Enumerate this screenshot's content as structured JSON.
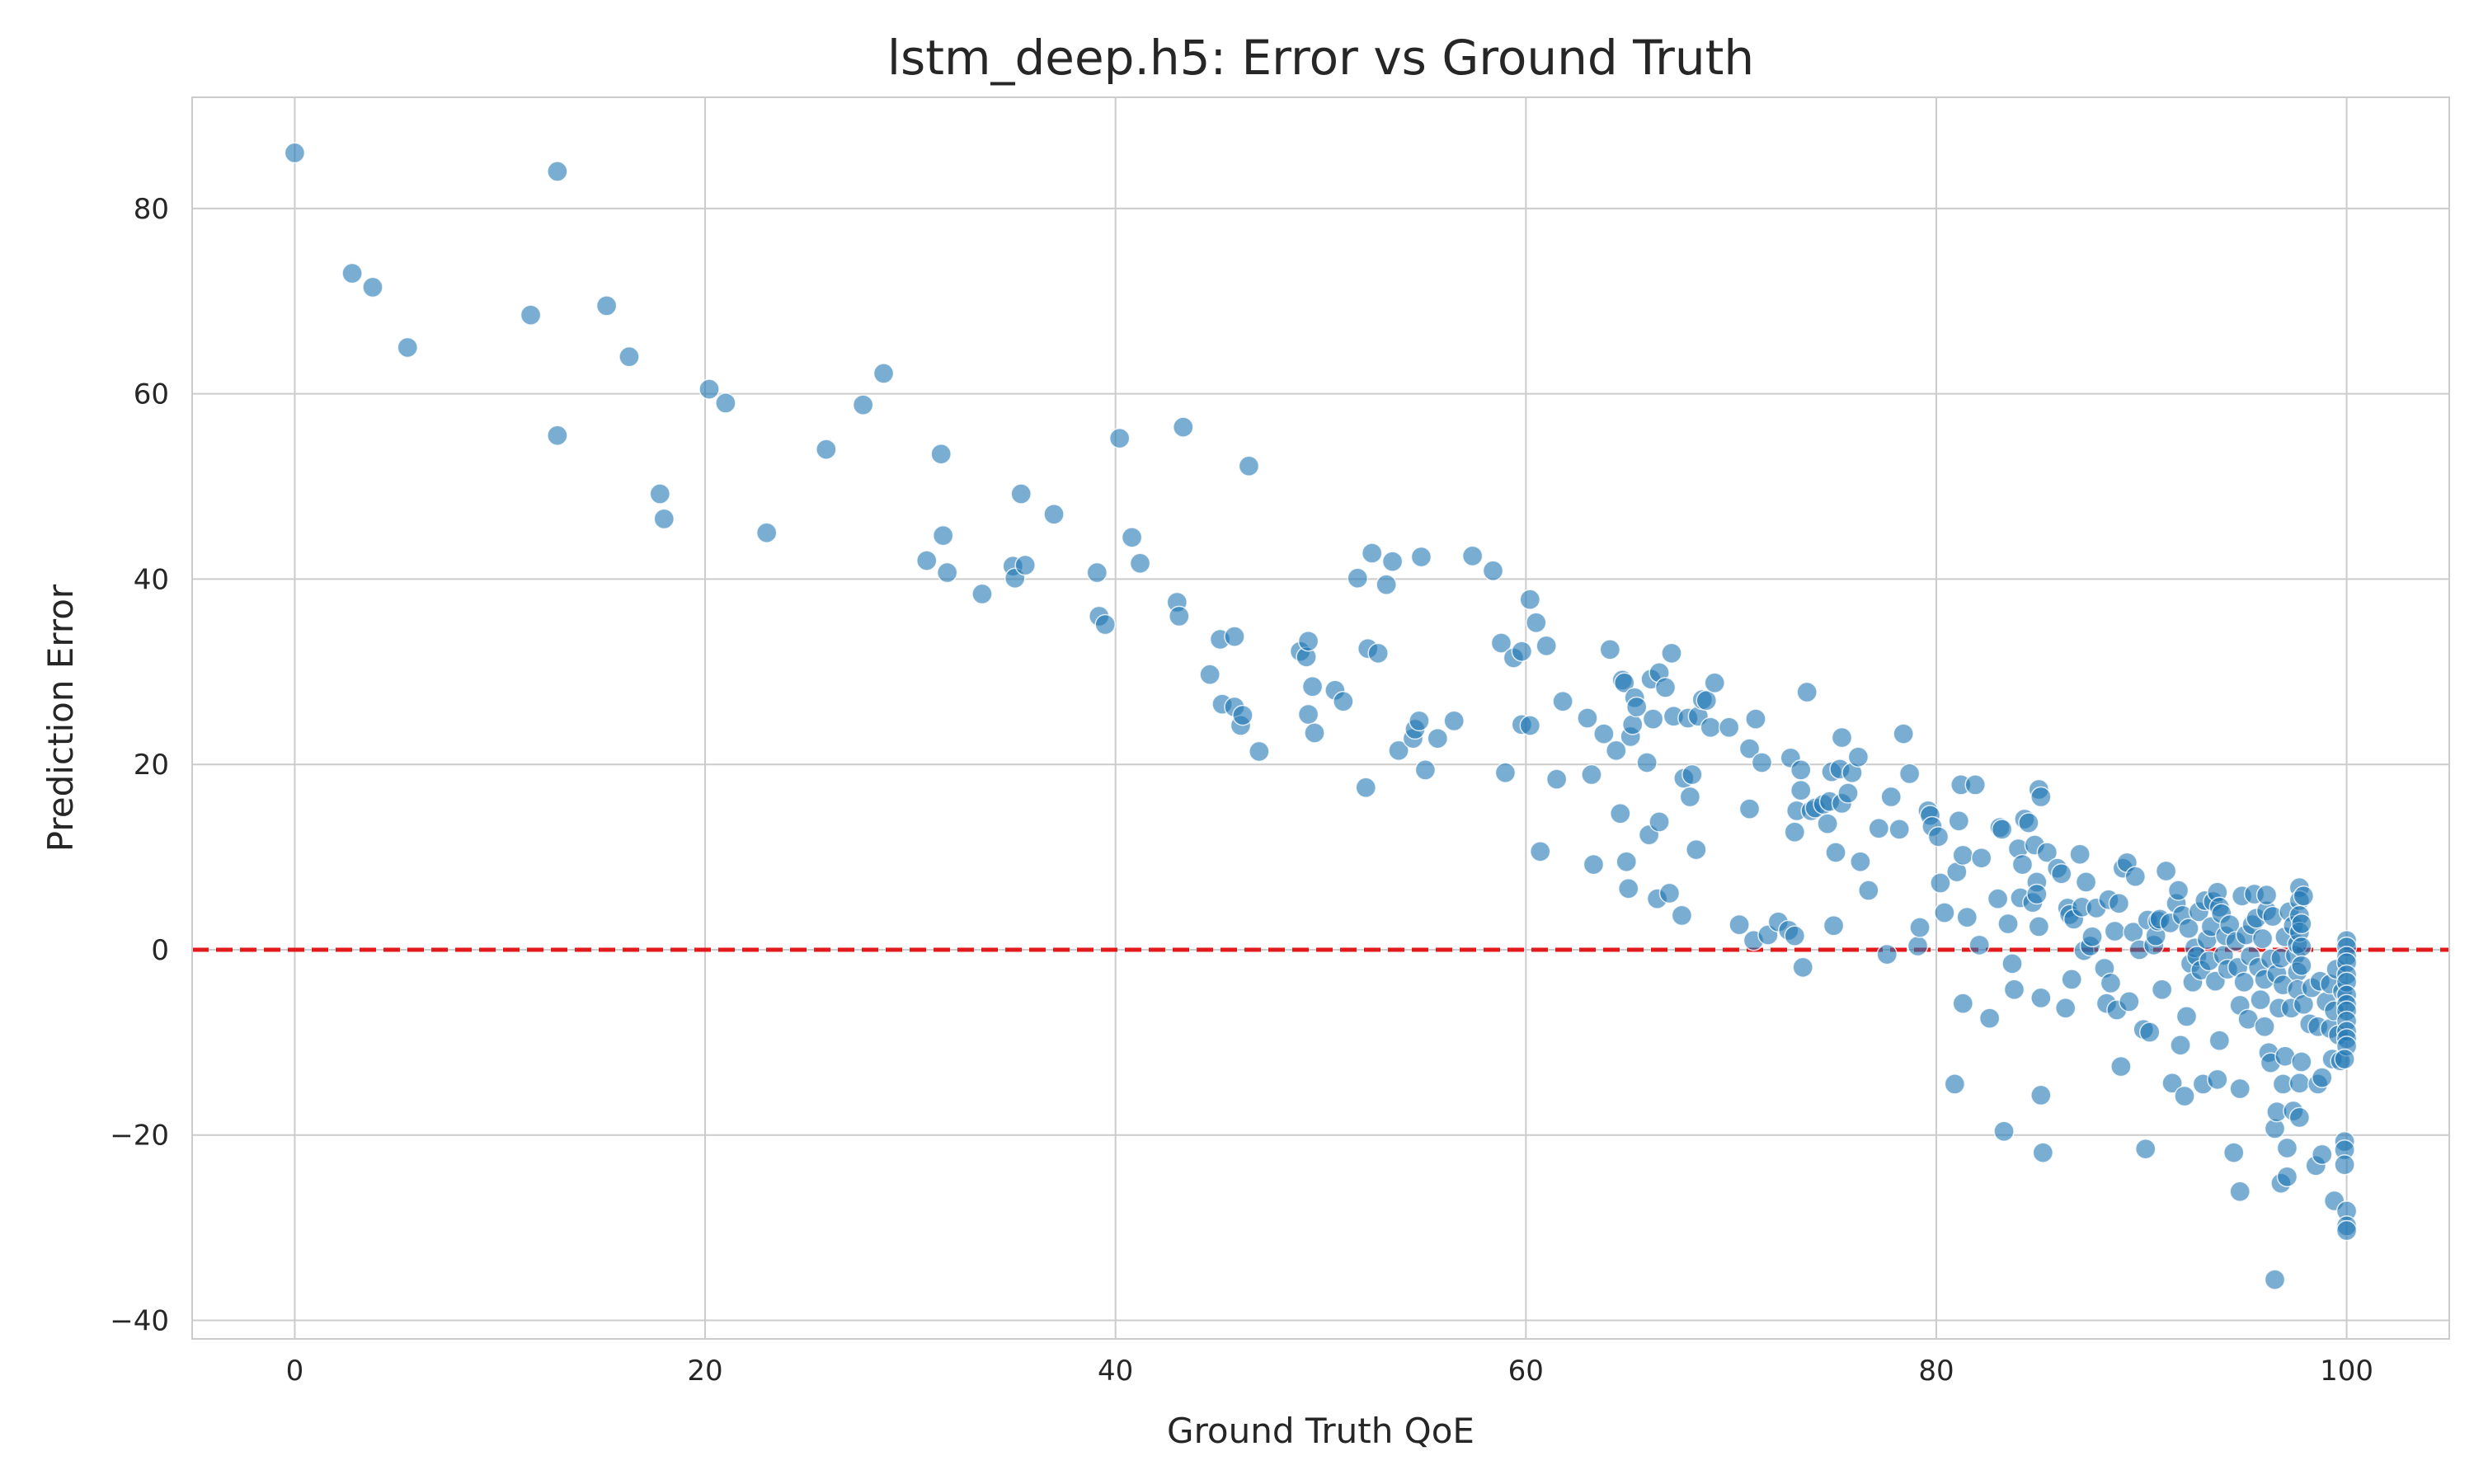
{
  "chart_data": {
    "type": "scatter",
    "title": "lstm_deep.h5: Error vs Ground Truth",
    "xlabel": "Ground Truth QoE",
    "ylabel": "Prediction Error",
    "xlim": [
      -5,
      105
    ],
    "ylim": [
      -42,
      92
    ],
    "xticks": [
      0,
      20,
      40,
      60,
      80,
      100
    ],
    "yticks": [
      -40,
      -20,
      0,
      20,
      40,
      60,
      80
    ],
    "grid": true,
    "reference_line": {
      "y": 0,
      "style": "dashed",
      "color": "#e31a1c"
    },
    "point_color": "#1f77b4",
    "points": [
      [
        0,
        86
      ],
      [
        2.8,
        73
      ],
      [
        3.8,
        71.5
      ],
      [
        5.5,
        65
      ],
      [
        11.5,
        68.5
      ],
      [
        12.8,
        84
      ],
      [
        12.8,
        55.5
      ],
      [
        15.2,
        69.5
      ],
      [
        16.3,
        64
      ],
      [
        17.8,
        49.2
      ],
      [
        18,
        46.5
      ],
      [
        20.2,
        60.5
      ],
      [
        21,
        59
      ],
      [
        23,
        45
      ],
      [
        25.9,
        54
      ],
      [
        27.7,
        58.8
      ],
      [
        28.7,
        62.2
      ],
      [
        30.8,
        42
      ],
      [
        31.5,
        53.5
      ],
      [
        31.6,
        44.7
      ],
      [
        31.8,
        40.7
      ],
      [
        33.5,
        38.4
      ],
      [
        35,
        41.4
      ],
      [
        35.1,
        40.1
      ],
      [
        35.4,
        49.2
      ],
      [
        35.6,
        41.5
      ],
      [
        37,
        47
      ],
      [
        39.1,
        40.7
      ],
      [
        39.2,
        36
      ],
      [
        39.5,
        35.1
      ],
      [
        40.2,
        55.2
      ],
      [
        40.8,
        44.5
      ],
      [
        41.2,
        41.7
      ],
      [
        43,
        37.5
      ],
      [
        43.1,
        36
      ],
      [
        43.3,
        56.4
      ],
      [
        44.6,
        29.7
      ],
      [
        45.1,
        33.5
      ],
      [
        45.2,
        26.5
      ],
      [
        45.8,
        33.8
      ],
      [
        45.8,
        26.2
      ],
      [
        46.1,
        24.2
      ],
      [
        46.2,
        25.3
      ],
      [
        46.5,
        52.2
      ],
      [
        47,
        21.4
      ],
      [
        49,
        32.2
      ],
      [
        49.3,
        31.6
      ],
      [
        49.4,
        33.3
      ],
      [
        49.4,
        25.4
      ],
      [
        49.6,
        28.4
      ],
      [
        49.7,
        23.4
      ],
      [
        50.7,
        28
      ],
      [
        51.1,
        26.8
      ],
      [
        51.8,
        40.1
      ],
      [
        52.2,
        17.5
      ],
      [
        52.3,
        32.5
      ],
      [
        52.5,
        42.8
      ],
      [
        52.8,
        32
      ],
      [
        53.2,
        39.4
      ],
      [
        53.5,
        41.9
      ],
      [
        53.8,
        21.5
      ],
      [
        54.5,
        22.8
      ],
      [
        54.6,
        23.8
      ],
      [
        54.8,
        24.7
      ],
      [
        54.9,
        42.4
      ],
      [
        55.1,
        19.4
      ],
      [
        55.7,
        22.8
      ],
      [
        56.5,
        24.7
      ],
      [
        57.4,
        42.5
      ],
      [
        58.4,
        40.9
      ],
      [
        58.8,
        33.1
      ],
      [
        59,
        19.1
      ],
      [
        59.4,
        31.5
      ],
      [
        59.8,
        32.2
      ],
      [
        59.8,
        24.3
      ],
      [
        60.2,
        37.8
      ],
      [
        60.2,
        24.2
      ],
      [
        60.5,
        35.3
      ],
      [
        60.7,
        10.6
      ],
      [
        61,
        32.8
      ],
      [
        61.5,
        18.4
      ],
      [
        61.8,
        26.8
      ],
      [
        63,
        25
      ],
      [
        63.2,
        18.9
      ],
      [
        63.3,
        9.2
      ],
      [
        63.8,
        23.3
      ],
      [
        64.1,
        32.4
      ],
      [
        64.4,
        21.5
      ],
      [
        64.6,
        14.7
      ],
      [
        64.7,
        29.1
      ],
      [
        64.8,
        28.8
      ],
      [
        64.9,
        9.5
      ],
      [
        65,
        6.6
      ],
      [
        65.1,
        23
      ],
      [
        65.2,
        24.3
      ],
      [
        65.3,
        27.2
      ],
      [
        65.4,
        26.2
      ],
      [
        65.9,
        20.2
      ],
      [
        66,
        12.4
      ],
      [
        66.1,
        29.2
      ],
      [
        66.2,
        24.9
      ],
      [
        66.4,
        5.5
      ],
      [
        66.5,
        29.9
      ],
      [
        66.5,
        13.8
      ],
      [
        66.8,
        28.3
      ],
      [
        67,
        6.1
      ],
      [
        67.1,
        32
      ],
      [
        67.2,
        25.2
      ],
      [
        67.6,
        3.7
      ],
      [
        67.7,
        18.5
      ],
      [
        67.9,
        25
      ],
      [
        68,
        16.5
      ],
      [
        68.1,
        18.9
      ],
      [
        68.3,
        10.8
      ],
      [
        68.4,
        25.2
      ],
      [
        68.6,
        27
      ],
      [
        68.8,
        26.9
      ],
      [
        69,
        24
      ],
      [
        69.2,
        28.8
      ],
      [
        69.9,
        24
      ],
      [
        70.4,
        2.7
      ],
      [
        70.9,
        21.7
      ],
      [
        70.9,
        15.2
      ],
      [
        71.1,
        1
      ],
      [
        71.2,
        24.9
      ],
      [
        71.5,
        20.2
      ],
      [
        71.8,
        1.6
      ],
      [
        72.3,
        3
      ],
      [
        72.8,
        2.1
      ],
      [
        72.9,
        20.7
      ],
      [
        73.1,
        1.5
      ],
      [
        73.1,
        12.7
      ],
      [
        73.2,
        15
      ],
      [
        73.4,
        19.4
      ],
      [
        73.4,
        17.2
      ],
      [
        73.5,
        -1.9
      ],
      [
        73.7,
        27.8
      ],
      [
        73.9,
        15
      ],
      [
        74.1,
        15.3
      ],
      [
        74.5,
        15.7
      ],
      [
        74.7,
        13.6
      ],
      [
        74.8,
        16
      ],
      [
        74.9,
        19.2
      ],
      [
        75,
        2.6
      ],
      [
        75.1,
        10.5
      ],
      [
        75.3,
        19.5
      ],
      [
        75.4,
        15.8
      ],
      [
        75.4,
        22.9
      ],
      [
        75.7,
        16.9
      ],
      [
        75.9,
        19.1
      ],
      [
        76.2,
        20.8
      ],
      [
        76.3,
        9.5
      ],
      [
        76.7,
        6.4
      ],
      [
        77.2,
        13.1
      ],
      [
        77.6,
        -0.5
      ],
      [
        77.8,
        16.5
      ],
      [
        78.2,
        13
      ],
      [
        78.4,
        23.3
      ],
      [
        78.7,
        19
      ],
      [
        79.1,
        0.4
      ],
      [
        79.2,
        2.4
      ],
      [
        79.6,
        15
      ],
      [
        79.7,
        14.5
      ],
      [
        79.8,
        13.3
      ],
      [
        80.1,
        12.2
      ],
      [
        80.2,
        7.2
      ],
      [
        80.4,
        4
      ],
      [
        80.9,
        -14.5
      ],
      [
        81,
        8.4
      ],
      [
        81.1,
        13.9
      ],
      [
        81.2,
        17.8
      ],
      [
        81.3,
        -5.8
      ],
      [
        81.3,
        10.2
      ],
      [
        81.5,
        3.5
      ],
      [
        81.9,
        17.8
      ],
      [
        82.1,
        0.5
      ],
      [
        82.2,
        9.9
      ],
      [
        82.6,
        -7.4
      ],
      [
        83,
        5.5
      ],
      [
        83.1,
        13.2
      ],
      [
        83.2,
        13
      ],
      [
        83.3,
        -19.6
      ],
      [
        83.5,
        2.8
      ],
      [
        83.7,
        -1.5
      ],
      [
        83.8,
        -4.3
      ],
      [
        84,
        10.9
      ],
      [
        84.1,
        5.6
      ],
      [
        84.2,
        9.2
      ],
      [
        84.3,
        14.1
      ],
      [
        84.5,
        13.7
      ],
      [
        84.7,
        5.1
      ],
      [
        84.8,
        11.3
      ],
      [
        84.9,
        7.3
      ],
      [
        84.9,
        6
      ],
      [
        85,
        17.3
      ],
      [
        85,
        2.5
      ],
      [
        85.1,
        16.5
      ],
      [
        85.1,
        -5.2
      ],
      [
        85.1,
        -15.7
      ],
      [
        85.2,
        -21.9
      ],
      [
        85.4,
        10.5
      ],
      [
        85.9,
        8.8
      ],
      [
        86.1,
        8.2
      ],
      [
        86.3,
        -6.3
      ],
      [
        86.4,
        4.5
      ],
      [
        86.5,
        3.8
      ],
      [
        86.6,
        -3.2
      ],
      [
        86.7,
        3.3
      ],
      [
        87,
        10.3
      ],
      [
        87.1,
        4.6
      ],
      [
        87.2,
        -0.1
      ],
      [
        87.3,
        7.3
      ],
      [
        87.5,
        0.4
      ],
      [
        87.6,
        1.4
      ],
      [
        87.8,
        4.5
      ],
      [
        88.2,
        -2
      ],
      [
        88.3,
        -5.8
      ],
      [
        88.4,
        5.4
      ],
      [
        88.5,
        -3.6
      ],
      [
        88.7,
        2
      ],
      [
        88.8,
        -6.5
      ],
      [
        88.9,
        5
      ],
      [
        89,
        -12.6
      ],
      [
        89.1,
        8.8
      ],
      [
        89.3,
        9.4
      ],
      [
        89.4,
        -5.6
      ],
      [
        89.6,
        1.9
      ],
      [
        89.7,
        7.9
      ],
      [
        89.9,
        0
      ],
      [
        90.1,
        -8.6
      ],
      [
        90.2,
        -21.5
      ],
      [
        90.3,
        3.2
      ],
      [
        90.4,
        -8.9
      ],
      [
        90.6,
        0.5
      ],
      [
        90.7,
        1.5
      ],
      [
        90.8,
        3.1
      ],
      [
        90.9,
        3.3
      ],
      [
        91,
        -4.3
      ],
      [
        91.2,
        8.5
      ],
      [
        91.4,
        2.9
      ],
      [
        91.5,
        -14.4
      ],
      [
        91.7,
        5
      ],
      [
        91.8,
        6.4
      ],
      [
        91.9,
        -10.3
      ],
      [
        92,
        3.7
      ],
      [
        92.1,
        -15.8
      ],
      [
        92.2,
        -7.2
      ],
      [
        92.3,
        2.3
      ],
      [
        92.4,
        -1.5
      ],
      [
        92.5,
        -3.5
      ],
      [
        92.6,
        0.2
      ],
      [
        92.7,
        -0.7
      ],
      [
        92.8,
        4.1
      ],
      [
        92.9,
        -2.2
      ],
      [
        93,
        -14.5
      ],
      [
        93.1,
        5.3
      ],
      [
        93.2,
        1.1
      ],
      [
        93.3,
        -1.2
      ],
      [
        93.4,
        2.5
      ],
      [
        93.5,
        5.2
      ],
      [
        93.6,
        -3.4
      ],
      [
        93.7,
        -14
      ],
      [
        93.7,
        6.2
      ],
      [
        93.8,
        4.6
      ],
      [
        93.8,
        -9.8
      ],
      [
        93.9,
        3.9
      ],
      [
        94,
        -0.6
      ],
      [
        94.1,
        1.5
      ],
      [
        94.2,
        -2.1
      ],
      [
        94.3,
        2.7
      ],
      [
        94.5,
        -21.9
      ],
      [
        94.6,
        0.9
      ],
      [
        94.7,
        -1.9
      ],
      [
        94.8,
        -6
      ],
      [
        94.8,
        -15
      ],
      [
        94.8,
        -26.1
      ],
      [
        94.9,
        5.8
      ],
      [
        95,
        -3.5
      ],
      [
        95.1,
        1.6
      ],
      [
        95.2,
        -7.5
      ],
      [
        95.3,
        -0.7
      ],
      [
        95.4,
        2.7
      ],
      [
        95.5,
        6
      ],
      [
        95.6,
        3.4
      ],
      [
        95.7,
        -1.9
      ],
      [
        95.8,
        -5.4
      ],
      [
        95.9,
        1.2
      ],
      [
        96,
        -8.3
      ],
      [
        96,
        -3.2
      ],
      [
        96.1,
        4.2
      ],
      [
        96.1,
        5.9
      ],
      [
        96.2,
        -11.1
      ],
      [
        96.3,
        -12.2
      ],
      [
        96.3,
        -1
      ],
      [
        96.4,
        3.6
      ],
      [
        96.5,
        -35.6
      ],
      [
        96.5,
        -19.3
      ],
      [
        96.6,
        -2.6
      ],
      [
        96.6,
        -17.5
      ],
      [
        96.7,
        -6.3
      ],
      [
        96.8,
        -25.2
      ],
      [
        96.8,
        -0.9
      ],
      [
        96.9,
        -3.8
      ],
      [
        96.9,
        -14.5
      ],
      [
        97,
        1.4
      ],
      [
        97,
        -11.5
      ],
      [
        97.1,
        -21.4
      ],
      [
        97.1,
        -24.5
      ],
      [
        97.2,
        4.1
      ],
      [
        97.3,
        -6.3
      ],
      [
        97.4,
        -17.4
      ],
      [
        97.4,
        2.6
      ],
      [
        97.5,
        -0.6
      ],
      [
        97.6,
        0.6
      ],
      [
        97.6,
        -2.4
      ],
      [
        97.6,
        -4.3
      ],
      [
        97.7,
        6.7
      ],
      [
        97.7,
        5.3
      ],
      [
        97.7,
        3.7
      ],
      [
        97.7,
        1.9
      ],
      [
        97.7,
        -18.1
      ],
      [
        97.7,
        -14.4
      ],
      [
        97.8,
        2.8
      ],
      [
        97.8,
        -12.1
      ],
      [
        97.8,
        0.3
      ],
      [
        97.8,
        -1.7
      ],
      [
        97.9,
        5.8
      ],
      [
        97.9,
        -5.9
      ],
      [
        98.2,
        -8
      ],
      [
        98.3,
        -4.1
      ],
      [
        98.5,
        -23.3
      ],
      [
        98.6,
        -8.3
      ],
      [
        98.6,
        -14.5
      ],
      [
        98.7,
        -3.4
      ],
      [
        98.8,
        -22.1
      ],
      [
        98.8,
        -13.8
      ],
      [
        99,
        -5.6
      ],
      [
        99.2,
        -8.5
      ],
      [
        99.2,
        -3.7
      ],
      [
        99.3,
        -11.8
      ],
      [
        99.4,
        -6.6
      ],
      [
        99.4,
        -27.1
      ],
      [
        99.5,
        -2.1
      ],
      [
        99.6,
        -9.2
      ],
      [
        99.7,
        -12
      ],
      [
        99.8,
        -4.5
      ],
      [
        99.9,
        -20.7
      ],
      [
        99.9,
        -21.6
      ],
      [
        99.9,
        -23.2
      ],
      [
        100,
        -28.2
      ],
      [
        100,
        -29.8
      ],
      [
        100,
        -30.3
      ],
      [
        100,
        1
      ],
      [
        100,
        0.3
      ],
      [
        100,
        -0.7
      ],
      [
        100,
        -1.4
      ],
      [
        100,
        -2.7
      ],
      [
        100,
        -3.5
      ],
      [
        100,
        -4.9
      ],
      [
        100,
        -5.9
      ],
      [
        100,
        -6.6
      ],
      [
        100,
        -7.7
      ],
      [
        100,
        -8.8
      ],
      [
        100,
        -9.6
      ],
      [
        100,
        -10.4
      ],
      [
        99.9,
        -11.8
      ]
    ]
  }
}
